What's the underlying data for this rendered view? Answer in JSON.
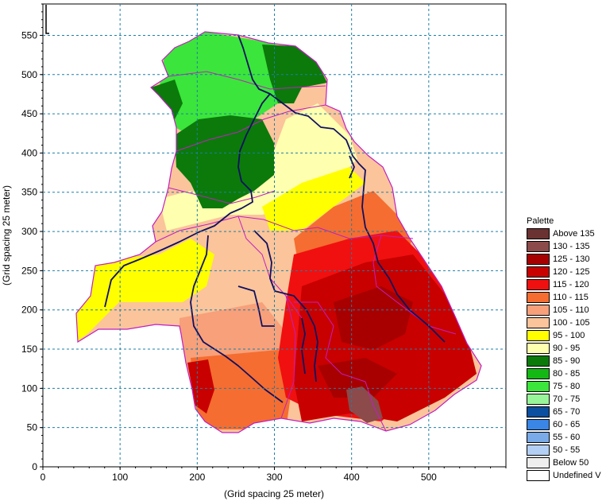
{
  "map": {
    "xlabel": "(Grid spacing 25 meter)",
    "ylabel": "(Grid spacing 25 meter)",
    "xlim": [
      0,
      600
    ],
    "ylim": [
      0,
      590
    ],
    "x_ticks": [
      0,
      100,
      200,
      300,
      400,
      500
    ],
    "y_ticks": [
      0,
      50,
      100,
      150,
      200,
      250,
      300,
      350,
      400,
      450,
      500,
      550
    ],
    "grid": true,
    "legend_position": "right"
  },
  "legend": {
    "title": "Palette",
    "items": [
      {
        "label": "Above 135",
        "color": "#6b3232"
      },
      {
        "label": "130 - 135",
        "color": "#8c4a4a"
      },
      {
        "label": "125 - 130",
        "color": "#a80000"
      },
      {
        "label": "120 - 125",
        "color": "#c80000"
      },
      {
        "label": "115 - 120",
        "color": "#f01010"
      },
      {
        "label": "110 - 115",
        "color": "#f56d30"
      },
      {
        "label": "105 - 110",
        "color": "#f7a07a"
      },
      {
        "label": "100 - 105",
        "color": "#fbc49a"
      },
      {
        "label": "95 - 100",
        "color": "#ffff00"
      },
      {
        "label": "90 - 95",
        "color": "#ffffb0"
      },
      {
        "label": "85 - 90",
        "color": "#0b7a0b"
      },
      {
        "label": "80 - 85",
        "color": "#14b814"
      },
      {
        "label": "75 - 80",
        "color": "#3be53b"
      },
      {
        "label": "70 - 75",
        "color": "#99f599"
      },
      {
        "label": "65 - 70",
        "color": "#0a4fa0"
      },
      {
        "label": "60 - 65",
        "color": "#3a86e6"
      },
      {
        "label": "55 - 60",
        "color": "#7aaae8"
      },
      {
        "label": "50 - 55",
        "color": "#b4cff5"
      },
      {
        "label": "Below 50",
        "color": "#eeeeee"
      },
      {
        "label": "Undefined V",
        "color": "#ffffff"
      }
    ]
  }
}
